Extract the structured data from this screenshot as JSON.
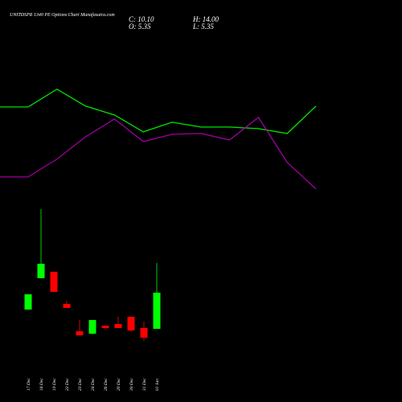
{
  "chart_data": [
    {
      "type": "line",
      "title": "UNITDSPR 1340 PE Options Chart Munafasutra.com",
      "categories": [
        null,
        null,
        null,
        null,
        null,
        null,
        null,
        null,
        null,
        null,
        null
      ],
      "ylim": [
        0,
        100
      ],
      "series": [
        {
          "color": "#00e600",
          "values": [
            58.5,
            69.5,
            59,
            53.5,
            43,
            49,
            46,
            46,
            45,
            42,
            59
          ]
        },
        {
          "color": "#a000a0",
          "values": [
            15,
            26,
            40,
            51,
            37,
            41.5,
            42,
            38,
            52,
            24,
            7.5
          ]
        }
      ]
    },
    {
      "type": "candlestick",
      "ohlc_labels": {
        "close": "C: 10.10",
        "high": "H: 14.00",
        "open": "O: 5.35",
        "low": "L: 5.35"
      },
      "categories": [
        "17 Dec",
        "18 Dec",
        "19 Dec",
        "22 Dec",
        "23 Dec",
        "24 Dec",
        "26 Dec",
        "29 Dec",
        "30 Dec",
        "31 Dec",
        "01 Jan"
      ],
      "open": [
        7.88,
        12.0,
        12.85,
        8.62,
        5.03,
        4.72,
        5.77,
        5.98,
        6.93,
        5.46,
        5.35
      ],
      "high": [
        9.89,
        21.08,
        12.85,
        9.04,
        6.51,
        6.51,
        5.77,
        6.93,
        6.93,
        6.3,
        14.0
      ],
      "low": [
        7.88,
        12.0,
        10.2,
        8.1,
        4.5,
        4.6,
        5.24,
        5.46,
        4.93,
        3.77,
        5.35
      ],
      "close": [
        9.89,
        13.9,
        10.2,
        8.1,
        4.5,
        6.51,
        5.46,
        5.46,
        5.14,
        4.19,
        10.1
      ],
      "ylim": [
        3,
        22.2
      ],
      "up_color": "#00ff00",
      "down_color": "#ff0000"
    }
  ]
}
